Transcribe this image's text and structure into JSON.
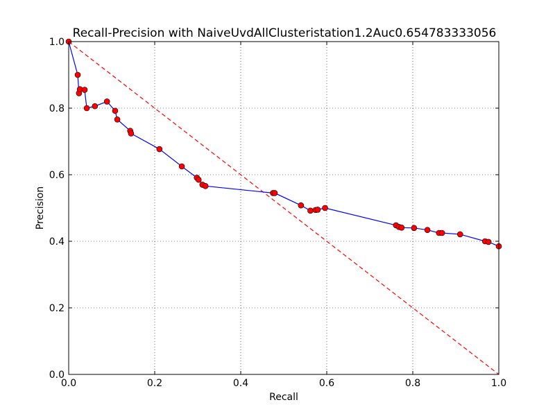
{
  "chart_data": {
    "type": "line",
    "title": "Recall-Precision with NaiveUvdAllClusteristation1.2Auc0.654783333056",
    "xlabel": "Recall",
    "ylabel": "Precision",
    "xlim": [
      0,
      1
    ],
    "ylim": [
      0,
      1
    ],
    "grid": true,
    "xticks": [
      "0.0",
      "0.2",
      "0.4",
      "0.6",
      "0.8",
      "1.0"
    ],
    "yticks": [
      "0.0",
      "0.2",
      "0.4",
      "0.6",
      "0.8",
      "1.0"
    ],
    "series": [
      {
        "style": "solid-line-with-markers",
        "line_color": "#0000ff",
        "marker_color": "#ff0000",
        "x": [
          0.0,
          0.021,
          0.024,
          0.026,
          0.037,
          0.042,
          0.061,
          0.089,
          0.108,
          0.113,
          0.143,
          0.145,
          0.211,
          0.263,
          0.298,
          0.302,
          0.311,
          0.318,
          0.475,
          0.479,
          0.54,
          0.562,
          0.574,
          0.579,
          0.596,
          0.761,
          0.768,
          0.774,
          0.803,
          0.834,
          0.861,
          0.868,
          0.91,
          0.968,
          0.976,
          1.0
        ],
        "y": [
          1.0,
          0.9,
          0.845,
          0.857,
          0.855,
          0.8,
          0.806,
          0.82,
          0.792,
          0.766,
          0.732,
          0.724,
          0.677,
          0.625,
          0.591,
          0.585,
          0.57,
          0.566,
          0.545,
          0.545,
          0.508,
          0.492,
          0.494,
          0.495,
          0.5,
          0.448,
          0.443,
          0.441,
          0.44,
          0.434,
          0.425,
          0.425,
          0.421,
          0.4,
          0.398,
          0.385
        ]
      },
      {
        "style": "dashed-line",
        "line_color": "#ff0000",
        "x": [
          0,
          1
        ],
        "y": [
          1,
          0
        ]
      }
    ]
  }
}
